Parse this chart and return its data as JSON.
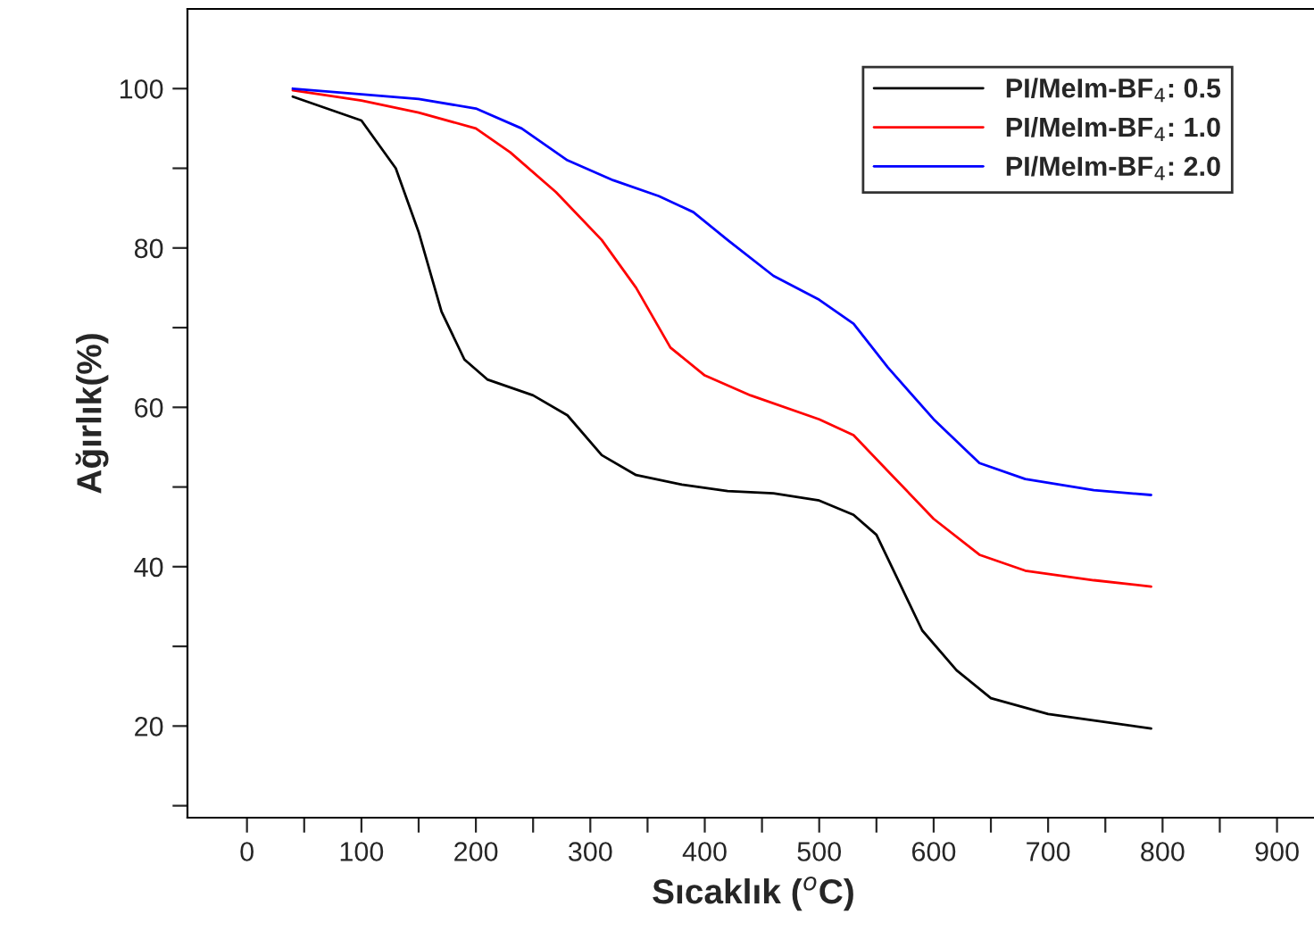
{
  "chart_data": {
    "type": "line",
    "xlabel": "Sıcaklık ($^{o}$C)",
    "ylabel": "Ağırlık(%)",
    "x": [
      40,
      100,
      130,
      150,
      170,
      190,
      210,
      250,
      280,
      310,
      340,
      380,
      420,
      460,
      500,
      530,
      550,
      570,
      590,
      620,
      650,
      700,
      750,
      790
    ],
    "series": [
      {
        "name": "PI/MeIm-BF$_{4}$: 0.5",
        "color": "#000000",
        "values": [
          99,
          96,
          90,
          82,
          72,
          66,
          63.5,
          61.5,
          59,
          54,
          51.5,
          50.3,
          49.5,
          49.2,
          48.3,
          46.5,
          44,
          38,
          32,
          27,
          23.5,
          21.5,
          20.5,
          19.7
        ]
      },
      {
        "name": "PI/MeIm-BF$_{4}$: 1.0",
        "color": "#ff0000",
        "x": [
          40,
          100,
          150,
          200,
          230,
          270,
          310,
          340,
          370,
          400,
          440,
          500,
          530,
          560,
          600,
          640,
          680,
          740,
          790
        ],
        "values": [
          99.8,
          98.5,
          97,
          95,
          92,
          87,
          81,
          75,
          67.5,
          64,
          61.5,
          58.5,
          56.5,
          52,
          46,
          41.5,
          39.5,
          38.3,
          37.5
        ]
      },
      {
        "name": "PI/MeIm-BF$_{4}$: 2.0",
        "color": "#0000ff",
        "x": [
          40,
          100,
          150,
          200,
          240,
          280,
          320,
          360,
          390,
          420,
          460,
          500,
          530,
          560,
          600,
          640,
          680,
          740,
          790
        ],
        "values": [
          100,
          99.3,
          98.7,
          97.5,
          95,
          91,
          88.5,
          86.5,
          84.5,
          81,
          76.5,
          73.5,
          70.5,
          65,
          58.5,
          53,
          51,
          49.6,
          49
        ]
      }
    ],
    "xlim": [
      -52,
      937
    ],
    "ylim": [
      8.5,
      110
    ],
    "xticks": [
      0,
      {
        "value": 50,
        "label": null
      },
      100,
      {
        "value": 150,
        "label": null
      },
      200,
      {
        "value": 250,
        "label": null
      },
      300,
      {
        "value": 350,
        "label": null
      },
      400,
      {
        "value": 450,
        "label": null
      },
      500,
      {
        "value": 550,
        "label": null
      },
      600,
      {
        "value": 650,
        "label": null
      },
      700,
      {
        "value": 750,
        "label": null
      },
      800,
      {
        "value": 850,
        "label": null
      },
      900
    ],
    "yticks": [
      {
        "value": 10,
        "label": null
      },
      20,
      {
        "value": 30,
        "label": null
      },
      40,
      {
        "value": 50,
        "label": null
      },
      60,
      {
        "value": 70,
        "label": null
      },
      80,
      {
        "value": 90,
        "label": null
      },
      100
    ],
    "legend": "top right",
    "grid": false,
    "marker": "none",
    "line_style": "solid"
  }
}
